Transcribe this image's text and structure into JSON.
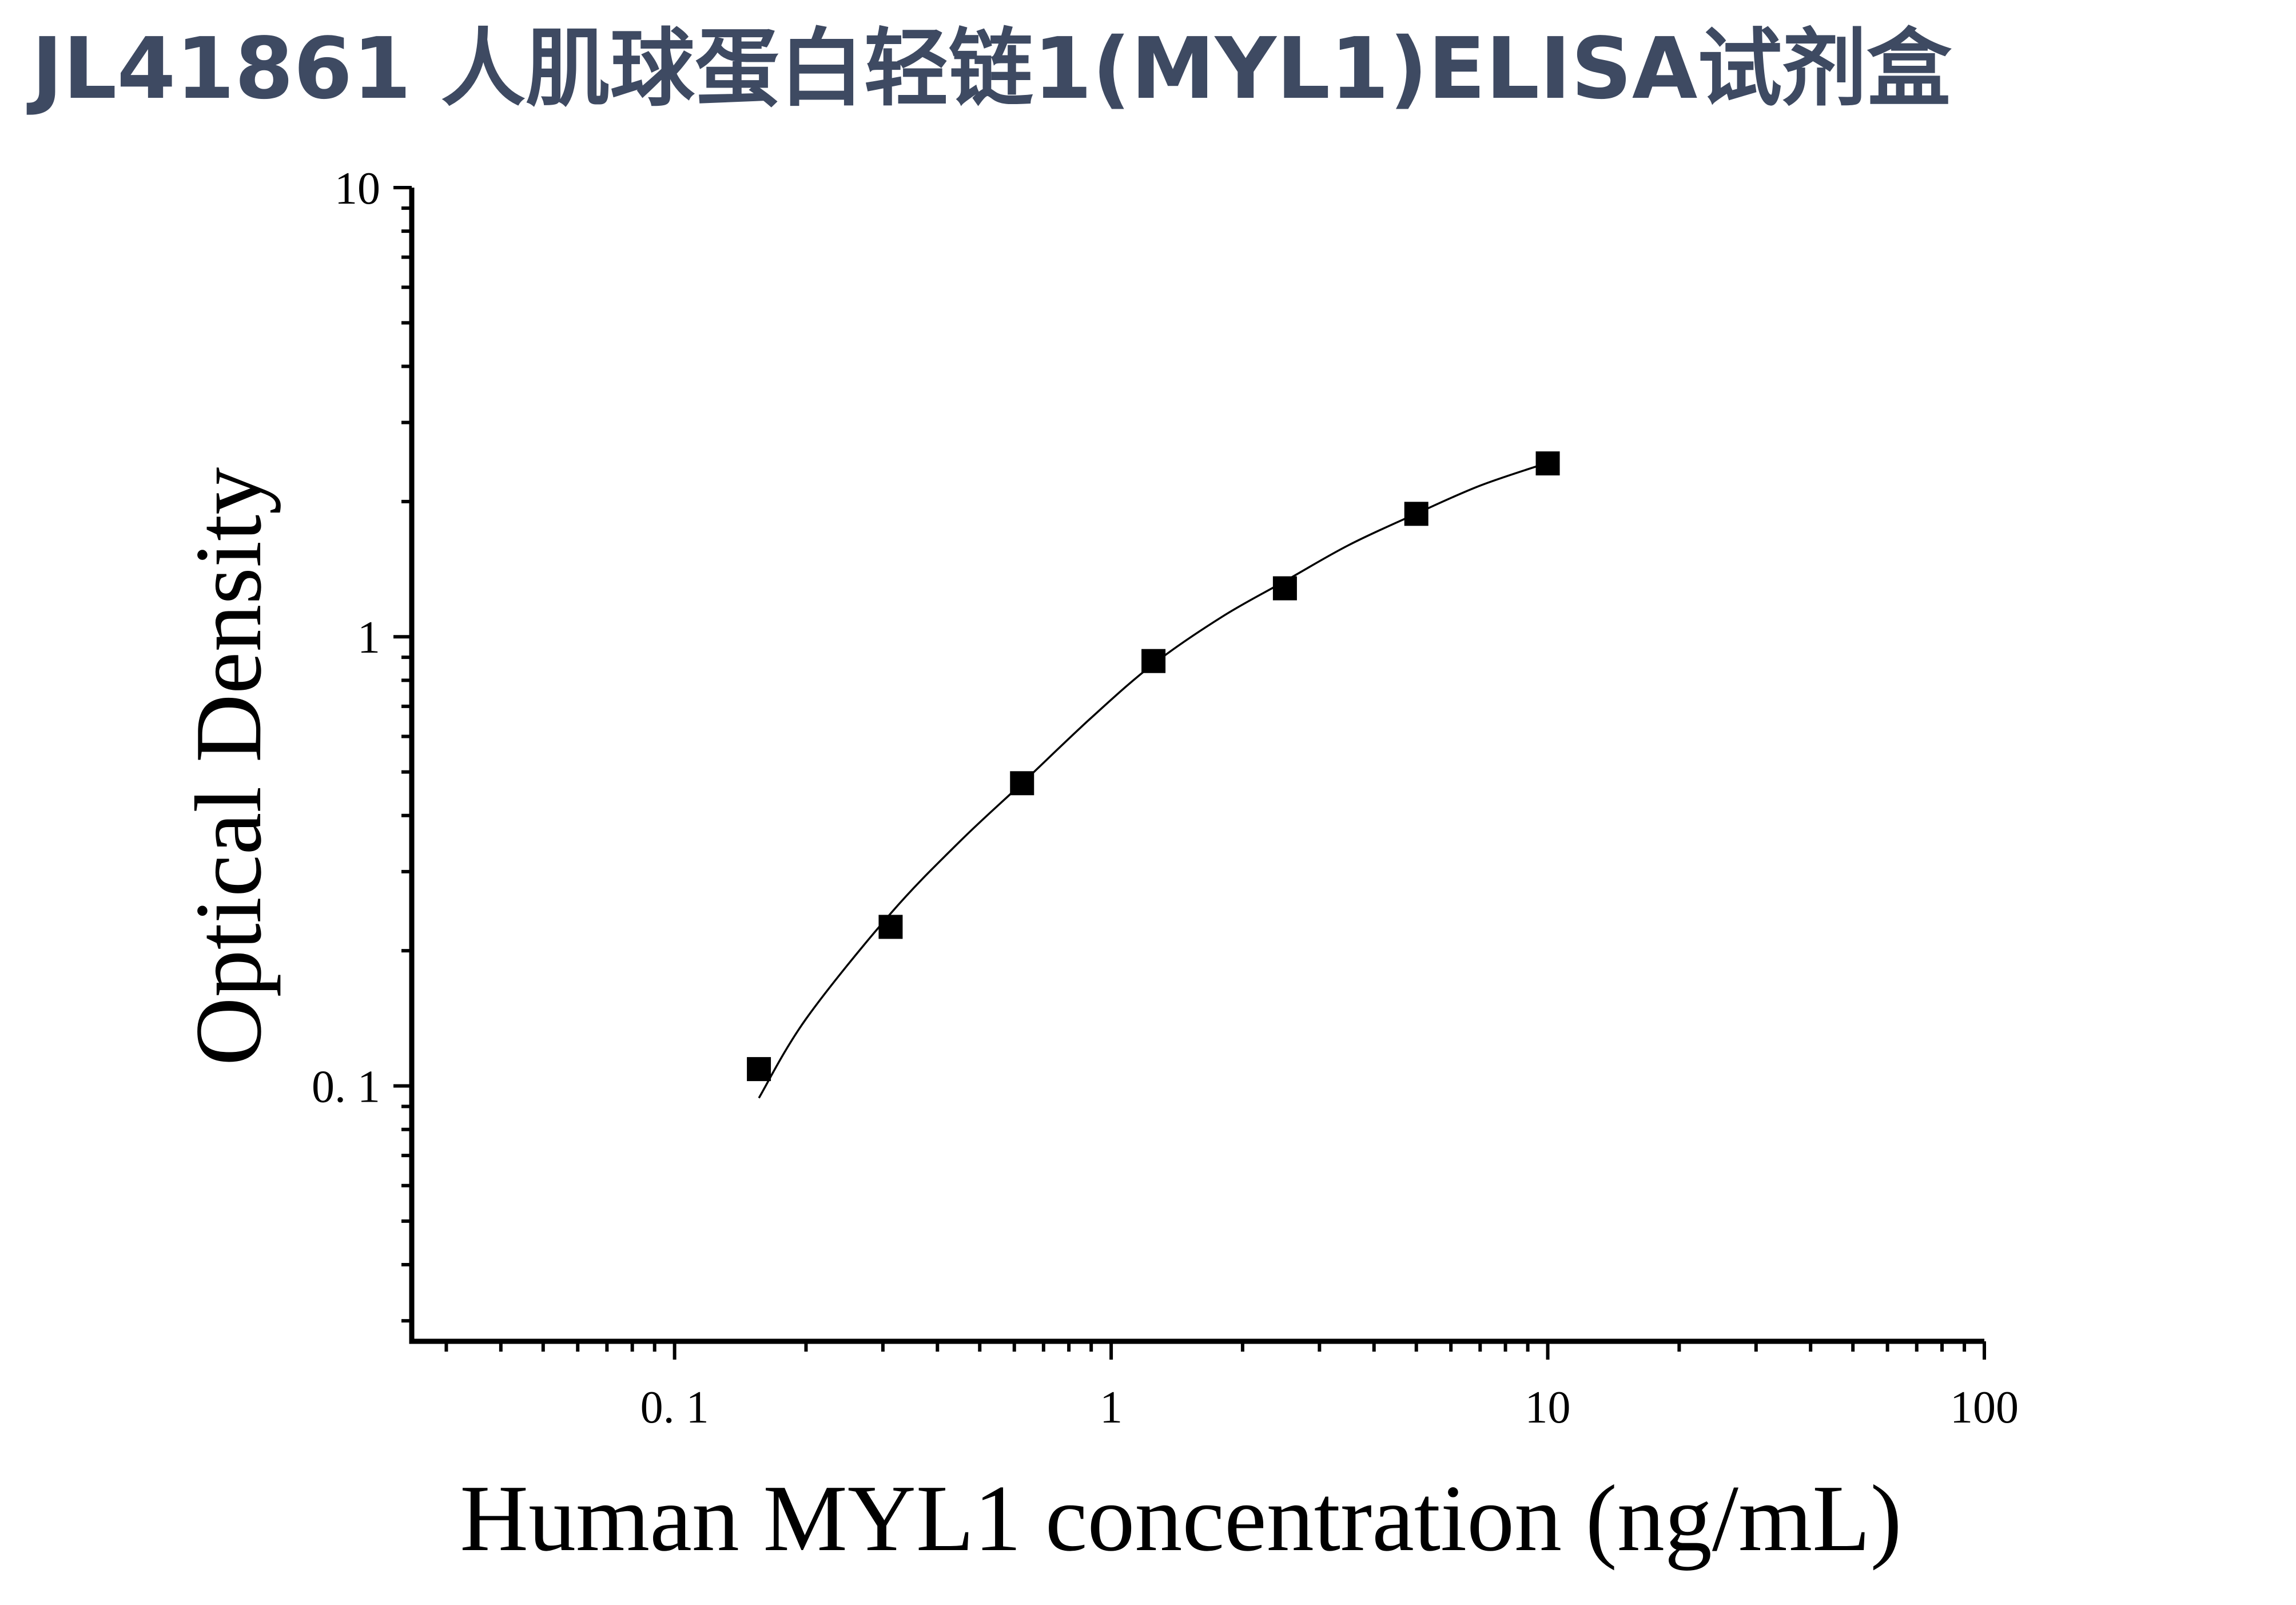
{
  "title": "JL41861 人肌球蛋白轻链1(MYL1)ELISA试剂盒",
  "chart_data": {
    "type": "scatter",
    "title": "JL41861 人肌球蛋白轻链1(MYL1)ELISA试剂盒",
    "xlabel": "Human MYL1 concentration (ng/mL)",
    "ylabel": "Optical Density",
    "xscale": "log",
    "yscale": "log",
    "xlim": [
      0.025,
      100
    ],
    "ylim": [
      0.027,
      10
    ],
    "xticks": [
      0.1,
      1,
      10,
      100
    ],
    "xtick_labels": [
      "0. 1",
      "1",
      "10",
      "100"
    ],
    "yticks": [
      0.1,
      1,
      10
    ],
    "ytick_labels": [
      "0. 1",
      "1",
      "10"
    ],
    "grid": false,
    "legend": "none",
    "marker": "square",
    "series": [
      {
        "x": [
          0.156,
          0.3125,
          0.625,
          1.25,
          2.5,
          5,
          10
        ],
        "y": [
          0.109,
          0.226,
          0.472,
          0.883,
          1.282,
          1.878,
          2.432
        ]
      }
    ],
    "fit_curve": {
      "type": "line",
      "x": [
        0.156,
        0.2,
        0.3125,
        0.45,
        0.625,
        0.9,
        1.25,
        1.8,
        2.5,
        3.5,
        5,
        7,
        10
      ],
      "y": [
        0.094,
        0.141,
        0.242,
        0.35,
        0.472,
        0.66,
        0.87,
        1.11,
        1.33,
        1.6,
        1.88,
        2.17,
        2.44
      ]
    }
  }
}
